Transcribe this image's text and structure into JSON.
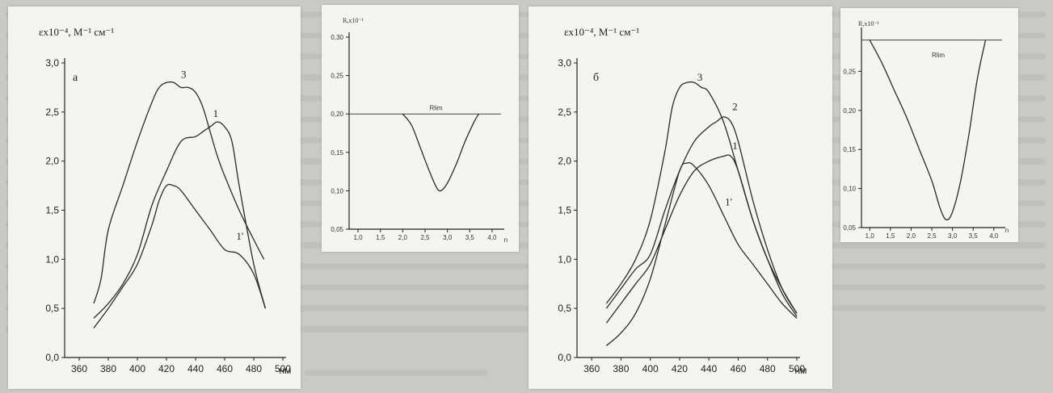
{
  "chart_data": [
    {
      "id": "chart-a",
      "type": "line",
      "panel_label": "а",
      "ylabel": "εx10⁻⁴, М⁻¹ см⁻¹",
      "xlabel": "нм",
      "xlim": [
        350,
        500
      ],
      "ylim": [
        0,
        3.0
      ],
      "xticks": [
        360,
        380,
        400,
        420,
        440,
        460,
        480,
        500
      ],
      "yticks": [
        0.0,
        0.5,
        1.0,
        1.5,
        2.0,
        2.5,
        3.0
      ],
      "yticklabels": [
        "0,0",
        "0,5",
        "1,0",
        "1,5",
        "2,0",
        "2,5",
        "3,0"
      ],
      "series": [
        {
          "name": "3",
          "x": [
            370,
            375,
            380,
            390,
            400,
            410,
            415,
            420,
            425,
            430,
            435,
            440,
            445,
            450,
            455,
            460,
            470,
            480,
            487
          ],
          "y": [
            0.55,
            0.8,
            1.3,
            1.75,
            2.2,
            2.6,
            2.75,
            2.8,
            2.8,
            2.75,
            2.75,
            2.7,
            2.55,
            2.3,
            2.05,
            1.85,
            1.5,
            1.2,
            1.0
          ]
        },
        {
          "name": "1",
          "x": [
            370,
            380,
            390,
            400,
            410,
            420,
            430,
            440,
            445,
            450,
            455,
            460,
            465,
            470,
            480,
            488
          ],
          "y": [
            0.4,
            0.55,
            0.75,
            1.05,
            1.55,
            1.9,
            2.2,
            2.25,
            2.3,
            2.35,
            2.4,
            2.35,
            2.2,
            1.75,
            0.95,
            0.5
          ]
        },
        {
          "name": "1'",
          "x": [
            370,
            380,
            390,
            400,
            410,
            415,
            420,
            425,
            430,
            440,
            450,
            460,
            470,
            480,
            488
          ],
          "y": [
            0.3,
            0.5,
            0.72,
            0.95,
            1.35,
            1.6,
            1.75,
            1.75,
            1.7,
            1.5,
            1.3,
            1.1,
            1.05,
            0.85,
            0.5
          ]
        }
      ]
    },
    {
      "id": "inset-a",
      "type": "line",
      "ylabel": "R,x10⁻¹",
      "ref_label": "Rlim",
      "xlabel": "n",
      "xlim": [
        0.8,
        4.2
      ],
      "ylim": [
        0.05,
        0.3
      ],
      "xticks": [
        1.0,
        1.5,
        2.0,
        2.5,
        3.0,
        3.5,
        4.0
      ],
      "xticklabels": [
        "1,0",
        "1,5",
        "2,0",
        "2,5",
        "3,0",
        "3,5",
        "4,0"
      ],
      "yticks": [
        0.05,
        0.1,
        0.15,
        0.2,
        0.25,
        0.3
      ],
      "yticklabels": [
        "0,05",
        "0,10",
        "0,15",
        "0,20",
        "0,25",
        "0,30"
      ],
      "ref_line": 0.2,
      "series": [
        {
          "x": [
            2.0,
            2.2,
            2.4,
            2.6,
            2.75,
            2.85,
            3.0,
            3.2,
            3.4,
            3.6,
            3.7
          ],
          "y": [
            0.2,
            0.185,
            0.155,
            0.125,
            0.105,
            0.1,
            0.11,
            0.135,
            0.165,
            0.19,
            0.2
          ]
        }
      ]
    },
    {
      "id": "chart-b",
      "type": "line",
      "panel_label": "б",
      "ylabel": "εx10⁻⁴, М⁻¹ см⁻¹",
      "xlabel": "нм",
      "xlim": [
        350,
        500
      ],
      "ylim": [
        0,
        3.0
      ],
      "xticks": [
        360,
        380,
        400,
        420,
        440,
        460,
        480,
        500
      ],
      "yticks": [
        0.0,
        0.5,
        1.0,
        1.5,
        2.0,
        2.5,
        3.0
      ],
      "yticklabels": [
        "0,0",
        "0,5",
        "1,0",
        "1,5",
        "2,0",
        "2,5",
        "3,0"
      ],
      "series": [
        {
          "name": "3",
          "x": [
            370,
            380,
            390,
            400,
            410,
            415,
            420,
            425,
            430,
            435,
            440,
            450,
            460,
            470,
            480,
            490,
            500
          ],
          "y": [
            0.55,
            0.75,
            1.0,
            1.4,
            2.1,
            2.55,
            2.75,
            2.8,
            2.8,
            2.75,
            2.7,
            2.4,
            1.9,
            1.4,
            1.0,
            0.7,
            0.45
          ]
        },
        {
          "name": "2",
          "x": [
            370,
            380,
            390,
            400,
            410,
            420,
            430,
            440,
            445,
            450,
            455,
            460,
            470,
            480,
            490,
            500
          ],
          "y": [
            0.5,
            0.7,
            0.9,
            1.05,
            1.5,
            1.9,
            2.2,
            2.35,
            2.4,
            2.45,
            2.4,
            2.2,
            1.6,
            1.1,
            0.7,
            0.45
          ]
        },
        {
          "name": "1",
          "x": [
            370,
            380,
            390,
            400,
            410,
            420,
            430,
            440,
            450,
            455,
            460,
            470,
            480,
            490,
            500
          ],
          "y": [
            0.35,
            0.55,
            0.75,
            0.95,
            1.3,
            1.65,
            1.9,
            2.0,
            2.05,
            2.05,
            1.9,
            1.4,
            1.0,
            0.65,
            0.42
          ]
        },
        {
          "name": "1'",
          "x": [
            370,
            380,
            390,
            400,
            410,
            420,
            425,
            430,
            440,
            450,
            460,
            470,
            480,
            490,
            500
          ],
          "y": [
            0.12,
            0.25,
            0.45,
            0.8,
            1.35,
            1.9,
            1.98,
            1.95,
            1.75,
            1.45,
            1.15,
            0.95,
            0.75,
            0.55,
            0.4
          ]
        }
      ]
    },
    {
      "id": "inset-b",
      "type": "line",
      "ylabel": "R,x10⁻¹",
      "ref_label": "Rlim",
      "xlabel": "n",
      "xlim": [
        0.8,
        4.2
      ],
      "ylim": [
        0.05,
        0.3
      ],
      "xticks": [
        1.0,
        1.5,
        2.0,
        2.5,
        3.0,
        3.5,
        4.0
      ],
      "xticklabels": [
        "1,0",
        "1,5",
        "2,0",
        "2,5",
        "3,0",
        "3,5",
        "4,0"
      ],
      "yticks": [
        0.05,
        0.1,
        0.15,
        0.2,
        0.25
      ],
      "yticklabels": [
        "0,05",
        "0,10",
        "0,15",
        "0,20",
        "0,25"
      ],
      "ref_line": 0.29,
      "series": [
        {
          "x": [
            1.0,
            1.3,
            1.6,
            1.9,
            2.2,
            2.5,
            2.7,
            2.85,
            3.0,
            3.2,
            3.4,
            3.6,
            3.8
          ],
          "y": [
            0.29,
            0.26,
            0.225,
            0.19,
            0.15,
            0.11,
            0.075,
            0.06,
            0.07,
            0.11,
            0.17,
            0.24,
            0.29
          ]
        }
      ]
    }
  ]
}
